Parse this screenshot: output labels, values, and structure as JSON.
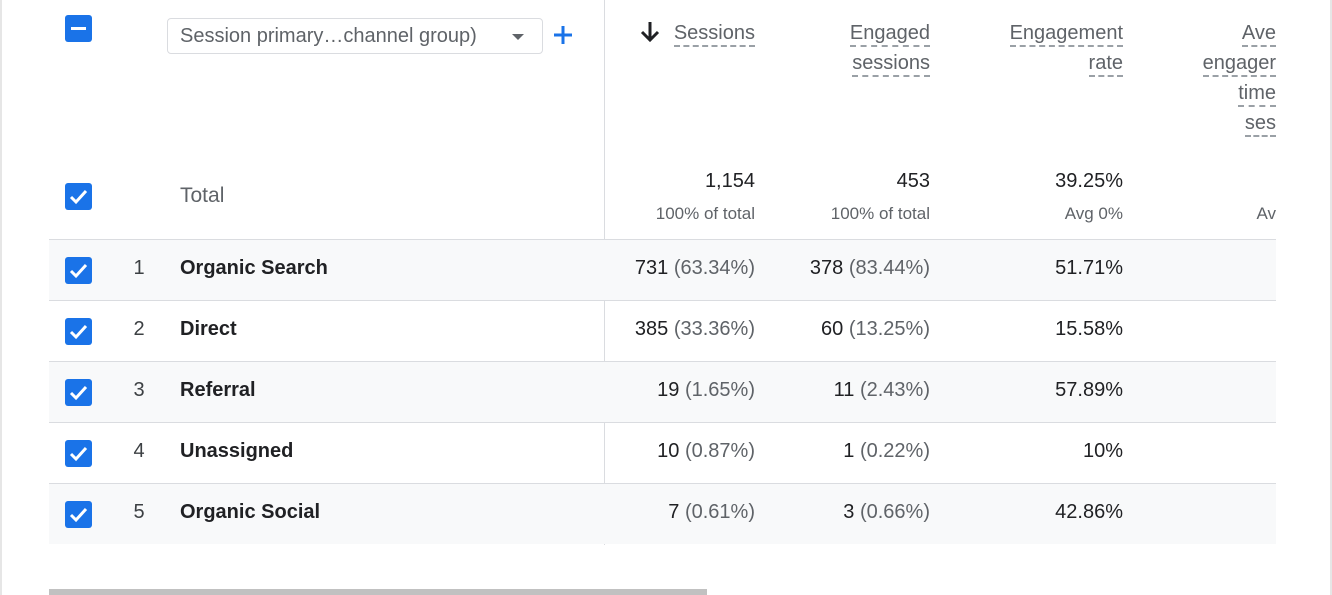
{
  "dimension_selector": {
    "label": "Session primary…channel group)"
  },
  "columns": {
    "sessions": {
      "label": "Sessions"
    },
    "engaged": {
      "line1": "Engaged",
      "line2": "sessions"
    },
    "rate": {
      "line1": "Engagement",
      "line2": "rate"
    },
    "avg": {
      "line1": "Ave",
      "line2": "engager",
      "line3": "time",
      "line4": "ses"
    }
  },
  "totals": {
    "label": "Total",
    "sessions": "1,154",
    "sessions_sub": "100% of total",
    "engaged": "453",
    "engaged_sub": "100% of total",
    "rate": "39.25%",
    "rate_sub": "Avg 0%",
    "avg_sub": "Av"
  },
  "rows": [
    {
      "index": "1",
      "name": "Organic Search",
      "sessions": "731",
      "sessions_pct": "(63.34%)",
      "engaged": "378",
      "engaged_pct": "(83.44%)",
      "rate": "51.71%"
    },
    {
      "index": "2",
      "name": "Direct",
      "sessions": "385",
      "sessions_pct": "(33.36%)",
      "engaged": "60",
      "engaged_pct": "(13.25%)",
      "rate": "15.58%"
    },
    {
      "index": "3",
      "name": "Referral",
      "sessions": "19",
      "sessions_pct": "(1.65%)",
      "engaged": "11",
      "engaged_pct": "(2.43%)",
      "rate": "57.89%"
    },
    {
      "index": "4",
      "name": "Unassigned",
      "sessions": "10",
      "sessions_pct": "(0.87%)",
      "engaged": "1",
      "engaged_pct": "(0.22%)",
      "rate": "10%"
    },
    {
      "index": "5",
      "name": "Organic Social",
      "sessions": "7",
      "sessions_pct": "(0.61%)",
      "engaged": "3",
      "engaged_pct": "(0.66%)",
      "rate": "42.86%"
    }
  ],
  "icons": {
    "select_all": "minus-checkbox-icon",
    "row_check": "checkbox-checked-icon",
    "add": "plus-icon",
    "sort": "arrow-down-icon",
    "dropdown": "caret-down-icon"
  },
  "colors": {
    "accent": "#1a73e8",
    "row_alt": "#f8f9fa",
    "divider": "#dadce0"
  }
}
